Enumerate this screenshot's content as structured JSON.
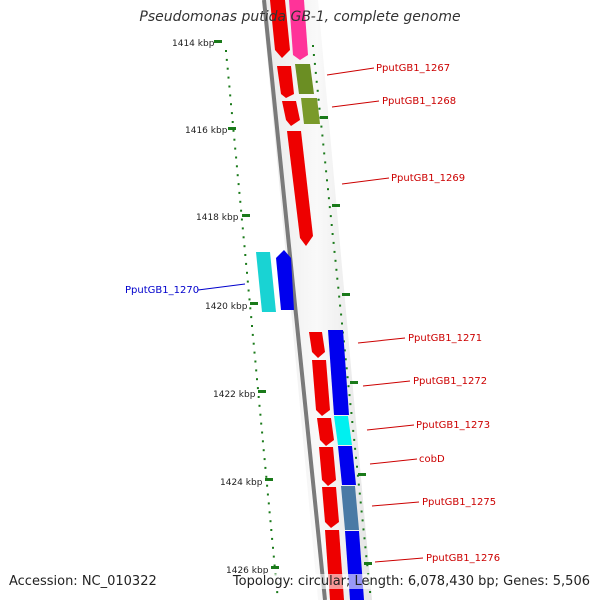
{
  "title": "Pseudomonas putida GB-1, complete genome",
  "footer": {
    "accession": "Accession: NC_010322",
    "topology": "Topology: circular; Length: 6,078,430 bp; Genes: 5,506"
  },
  "ticks": [
    {
      "label": "1414 kbp"
    },
    {
      "label": "1416 kbp"
    },
    {
      "label": "1418 kbp"
    },
    {
      "label": "1420 kbp"
    },
    {
      "label": "1422 kbp"
    },
    {
      "label": "1424 kbp"
    },
    {
      "label": "1426 kbp"
    }
  ],
  "genes": [
    {
      "label": "PputGB1_1267",
      "color": "#cc0000"
    },
    {
      "label": "PputGB1_1268",
      "color": "#cc0000"
    },
    {
      "label": "PputGB1_1269",
      "color": "#cc0000"
    },
    {
      "label": "PputGB1_1270",
      "color": "#0000cc"
    },
    {
      "label": "PputGB1_1271",
      "color": "#cc0000"
    },
    {
      "label": "PputGB1_1272",
      "color": "#cc0000"
    },
    {
      "label": "PputGB1_1273",
      "color": "#cc0000"
    },
    {
      "label": "cobD",
      "color": "#cc0000"
    },
    {
      "label": "PputGB1_1275",
      "color": "#cc0000"
    },
    {
      "label": "PputGB1_1276",
      "color": "#cc0000"
    }
  ],
  "colors": {
    "backbone": "#808080",
    "tick": "#1a7a1a",
    "forward_cds": "#ff0000",
    "reverse_cds": "#0000ff",
    "magenta_feature": "#ff33aa",
    "olive_feature": "#7a9a2a",
    "cyan_feature": "#00e5e5",
    "steel_feature": "#4a7aa5"
  }
}
